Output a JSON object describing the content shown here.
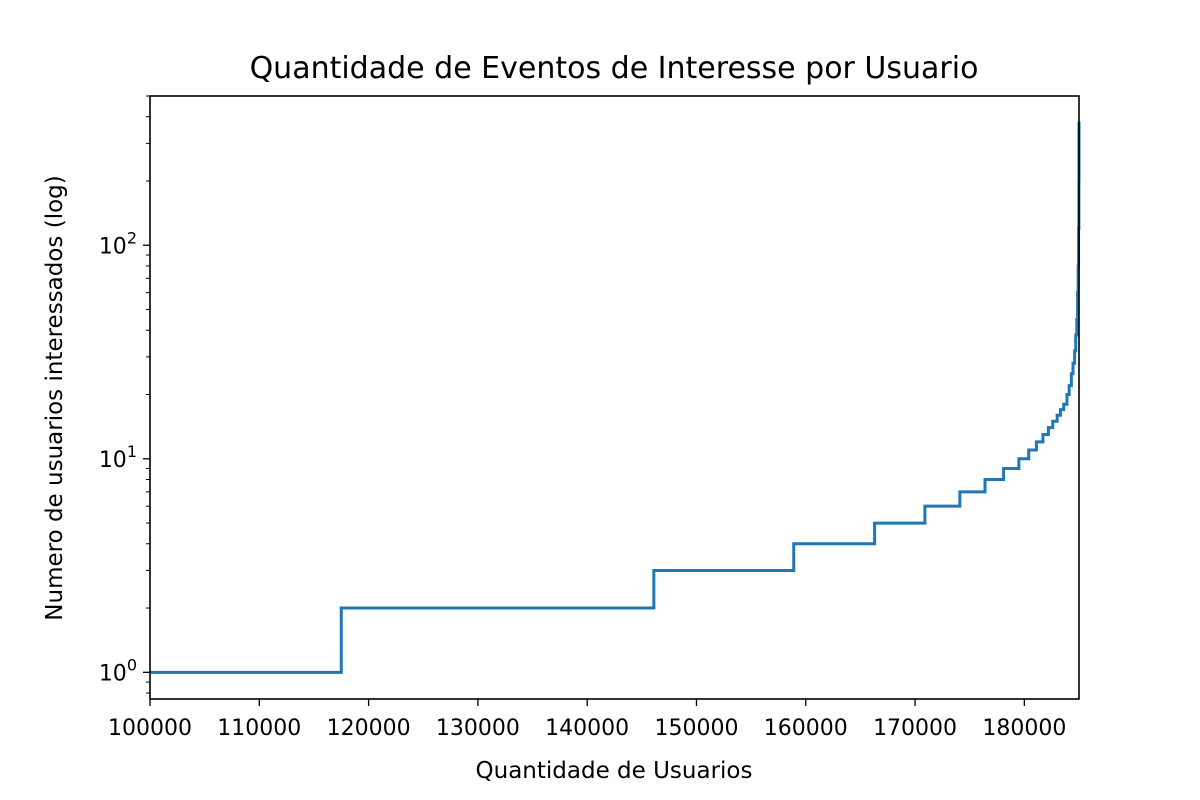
{
  "chart_data": {
    "type": "line",
    "title": "Quantidade de Eventos de Interesse por Usuario",
    "xlabel": "Quantidade de Usuarios",
    "ylabel": "Numero de usuarios interessados (log)",
    "yscale": "log",
    "xlim": [
      100000,
      185000
    ],
    "ylim": [
      0.75,
      500
    ],
    "grid": false,
    "x_ticks": [
      100000,
      110000,
      120000,
      130000,
      140000,
      150000,
      160000,
      170000,
      180000
    ],
    "x_tick_labels": [
      "100000",
      "110000",
      "120000",
      "130000",
      "140000",
      "150000",
      "160000",
      "170000",
      "180000"
    ],
    "y_ticks": [
      {
        "value": 1,
        "base": "10",
        "exp": "0"
      },
      {
        "value": 10,
        "base": "10",
        "exp": "1"
      },
      {
        "value": 100,
        "base": "10",
        "exp": "2"
      }
    ],
    "series": [
      {
        "color": "#1f77b4",
        "step": "post",
        "x": [
          100000,
          117500,
          146100,
          158900,
          166300,
          170900,
          174100,
          176400,
          178100,
          179500,
          180400,
          181100,
          181700,
          182200,
          182600,
          183000,
          183300,
          183600,
          183900,
          184100,
          184300,
          184450,
          184600,
          184700,
          184800,
          184870,
          184920,
          184960,
          184990,
          185000
        ],
        "y": [
          1,
          2,
          3,
          4,
          5,
          6,
          7,
          8,
          9,
          10,
          11,
          12,
          13,
          14,
          15,
          16,
          17,
          18,
          20,
          22,
          25,
          28,
          32,
          38,
          45,
          60,
          80,
          120,
          200,
          380
        ]
      }
    ]
  }
}
